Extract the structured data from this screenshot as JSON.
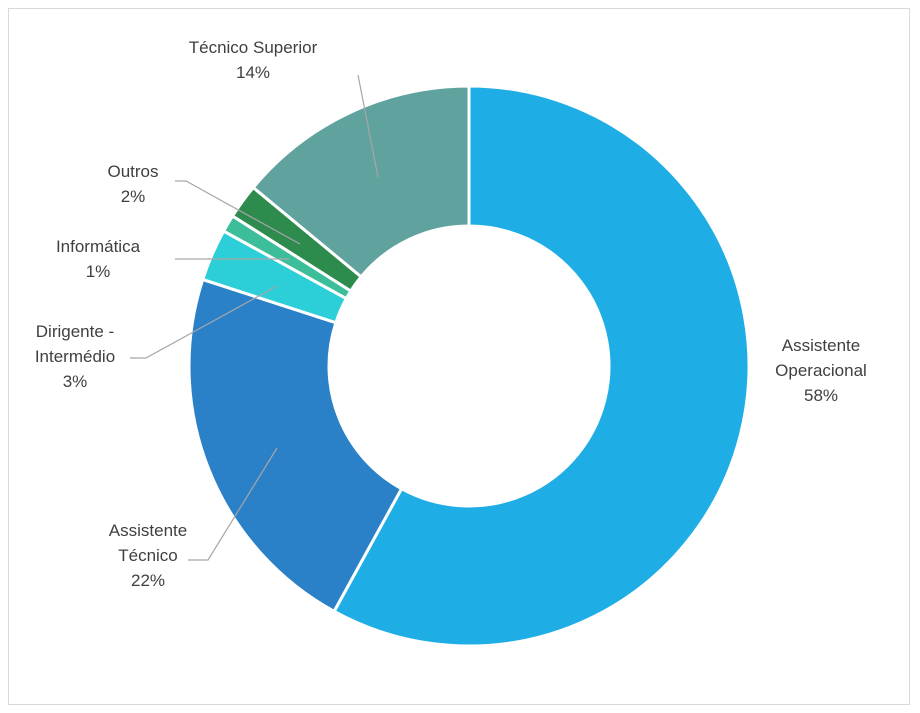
{
  "chart_data": {
    "type": "pie",
    "donut": true,
    "title": "",
    "slices": [
      {
        "name": "Assistente Operacional",
        "label_lines": [
          "Assistente",
          "Operacional"
        ],
        "value": 58,
        "value_label": "58%",
        "color": "#1fade5"
      },
      {
        "name": "Assistente Técnico",
        "label_lines": [
          "Assistente",
          "Técnico"
        ],
        "value": 22,
        "value_label": "22%",
        "color": "#2b81c8"
      },
      {
        "name": "Dirigente - Intermédio",
        "label_lines": [
          "Dirigente -",
          "Intermédio"
        ],
        "value": 3,
        "value_label": "3%",
        "color": "#2ccfd7"
      },
      {
        "name": "Informática",
        "label_lines": [
          "Informática"
        ],
        "value": 1,
        "value_label": "1%",
        "color": "#3dbe9a"
      },
      {
        "name": "Outros",
        "label_lines": [
          "Outros"
        ],
        "value": 2,
        "value_label": "2%",
        "color": "#2e8b4e"
      },
      {
        "name": "Técnico Superior",
        "label_lines": [
          "Técnico Superior"
        ],
        "value": 14,
        "value_label": "14%",
        "color": "#60a39e"
      }
    ]
  }
}
